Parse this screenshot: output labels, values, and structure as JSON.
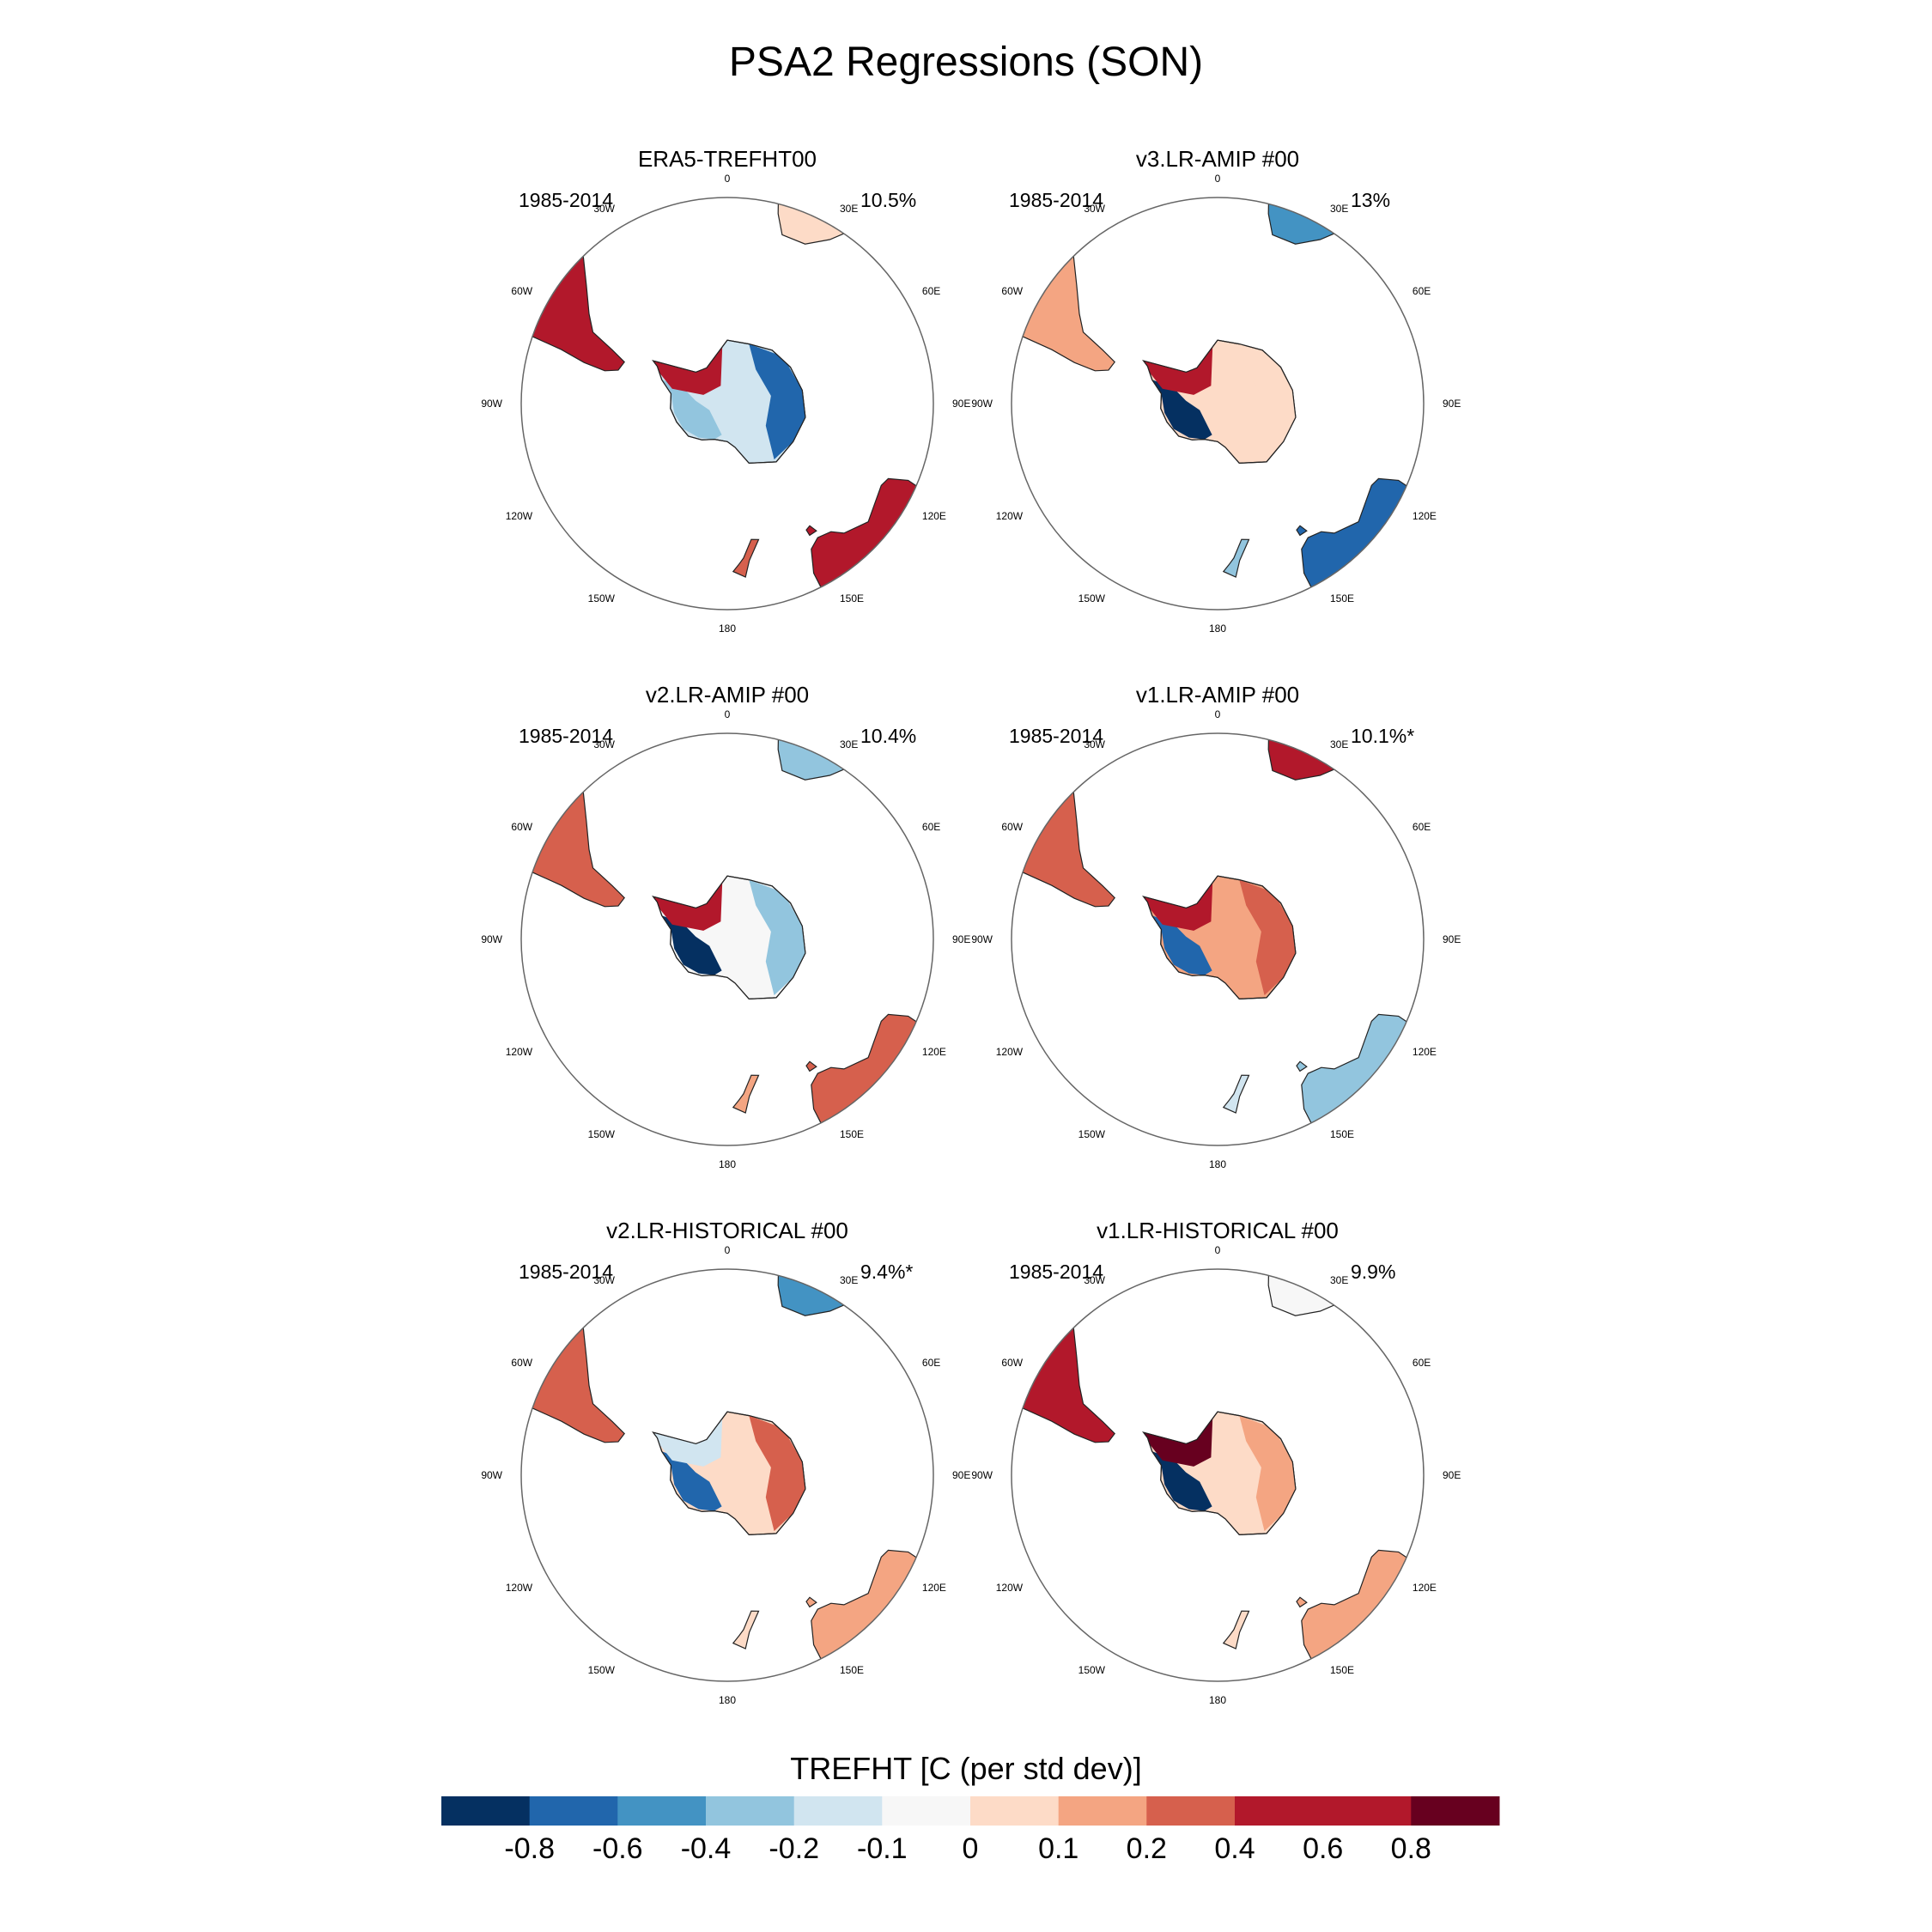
{
  "figure": {
    "title": "PSA2 Regressions (SON)"
  },
  "panels": [
    {
      "title": "ERA5-TREFHT00",
      "period": "1985-2014",
      "variance": "10.5%",
      "wap": -0.3,
      "ap": 0.5,
      "dml": -0.6,
      "aus": 0.6,
      "sa": 0.6,
      "af": 0.1
    },
    {
      "title": "v3.LR-AMIP  #00",
      "period": "1985-2014",
      "variance": "13%",
      "wap": -0.9,
      "ap": 0.8,
      "dml": 0.1,
      "aus": -0.7,
      "sa": 0.2,
      "af": -0.4
    },
    {
      "title": "v2.LR-AMIP  #00",
      "period": "1985-2014",
      "variance": "10.4%",
      "wap": -0.9,
      "ap": 0.6,
      "dml": -0.2,
      "aus": 0.3,
      "sa": 0.3,
      "af": -0.3
    },
    {
      "title": "v1.LR-AMIP  #00",
      "period": "1985-2014",
      "variance": "10.1%*",
      "wap": -0.6,
      "ap": 0.7,
      "dml": 0.4,
      "aus": -0.2,
      "sa": 0.3,
      "af": 0.5
    },
    {
      "title": "v2.LR-HISTORICAL  #00",
      "period": "1985-2014",
      "variance": "9.4%*",
      "wap": -0.7,
      "ap": -0.1,
      "dml": 0.3,
      "aus": 0.2,
      "sa": 0.4,
      "af": -0.5
    },
    {
      "title": "v1.LR-HISTORICAL  #00",
      "period": "1985-2014",
      "variance": "9.9%",
      "wap": -0.9,
      "ap": 0.9,
      "dml": 0.2,
      "aus": 0.15,
      "sa": 0.6,
      "af": -0.05
    }
  ],
  "map_labels": {
    "longitudes": [
      "0",
      "30E",
      "60E",
      "90E",
      "120E",
      "150E",
      "180",
      "150W",
      "120W",
      "90W",
      "60W",
      "30W"
    ],
    "longitude_degrees": [
      0,
      30,
      60,
      90,
      120,
      150,
      180,
      -150,
      -120,
      -90,
      -60,
      -30
    ]
  },
  "colorbar": {
    "title": "TREFHT [C (per std dev)]",
    "colors": [
      "#053061",
      "#2166ac",
      "#4393c3",
      "#92c5de",
      "#d1e5f0",
      "#f7f7f7",
      "#fddbc7",
      "#f4a582",
      "#d6604d",
      "#b2182b",
      "#b2182b",
      "#67001f"
    ],
    "tick_labels": [
      "-0.8",
      "-0.6",
      "-0.4",
      "-0.2",
      "-0.1",
      "0",
      "0.1",
      "0.2",
      "0.4",
      "0.6",
      "0.8"
    ]
  }
}
